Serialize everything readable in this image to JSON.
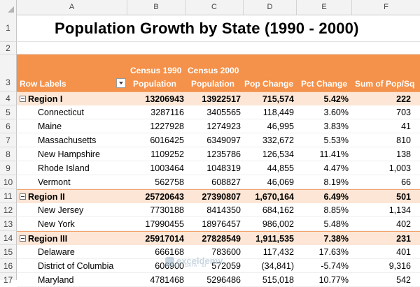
{
  "columns": [
    "A",
    "B",
    "C",
    "D",
    "E",
    "F"
  ],
  "row_numbers": [
    "1",
    "2",
    "3",
    "4",
    "5",
    "6",
    "7",
    "8",
    "9",
    "10",
    "11",
    "12",
    "13",
    "14",
    "15",
    "16",
    "17"
  ],
  "title": "Population Growth by State (1990 - 2000)",
  "pivot": {
    "headers": {
      "row_labels": "Row Labels",
      "census1990_line1": "Census 1990",
      "census1990_line2": "Population",
      "census2000_line1": "Census 2000",
      "census2000_line2": "Population",
      "pop_change": "Pop Change",
      "pct_change": "Pct Change",
      "sum_pop_sq": "Sum of Pop/Sq"
    },
    "rows": [
      {
        "label": "Region I",
        "c1990": "13206943",
        "c2000": "13922517",
        "change": "715,574",
        "pct": "5.42%",
        "sq": "222"
      },
      {
        "label": "Connecticut",
        "c1990": "3287116",
        "c2000": "3405565",
        "change": "118,449",
        "pct": "3.60%",
        "sq": "703"
      },
      {
        "label": "Maine",
        "c1990": "1227928",
        "c2000": "1274923",
        "change": "46,995",
        "pct": "3.83%",
        "sq": "41"
      },
      {
        "label": "Massachusetts",
        "c1990": "6016425",
        "c2000": "6349097",
        "change": "332,672",
        "pct": "5.53%",
        "sq": "810"
      },
      {
        "label": "New Hampshire",
        "c1990": "1109252",
        "c2000": "1235786",
        "change": "126,534",
        "pct": "11.41%",
        "sq": "138"
      },
      {
        "label": "Rhode Island",
        "c1990": "1003464",
        "c2000": "1048319",
        "change": "44,855",
        "pct": "4.47%",
        "sq": "1,003"
      },
      {
        "label": "Vermont",
        "c1990": "562758",
        "c2000": "608827",
        "change": "46,069",
        "pct": "8.19%",
        "sq": "66"
      },
      {
        "label": "Region II",
        "c1990": "25720643",
        "c2000": "27390807",
        "change": "1,670,164",
        "pct": "6.49%",
        "sq": "501"
      },
      {
        "label": "New Jersey",
        "c1990": "7730188",
        "c2000": "8414350",
        "change": "684,162",
        "pct": "8.85%",
        "sq": "1,134"
      },
      {
        "label": "New York",
        "c1990": "17990455",
        "c2000": "18976457",
        "change": "986,002",
        "pct": "5.48%",
        "sq": "402"
      },
      {
        "label": "Region III",
        "c1990": "25917014",
        "c2000": "27828549",
        "change": "1,911,535",
        "pct": "7.38%",
        "sq": "231"
      },
      {
        "label": "Delaware",
        "c1990": "666168",
        "c2000": "783600",
        "change": "117,432",
        "pct": "17.63%",
        "sq": "401"
      },
      {
        "label": "District of Columbia",
        "c1990": "606900",
        "c2000": "572059",
        "change": "(34,841)",
        "pct": "-5.74%",
        "sq": "9,316"
      },
      {
        "label": "Maryland",
        "c1990": "4781468",
        "c2000": "5296486",
        "change": "515,018",
        "pct": "10.77%",
        "sq": "542"
      }
    ]
  },
  "watermark": {
    "main": "exceldemy",
    "sub": "EXCEL · DATA · BI"
  }
}
